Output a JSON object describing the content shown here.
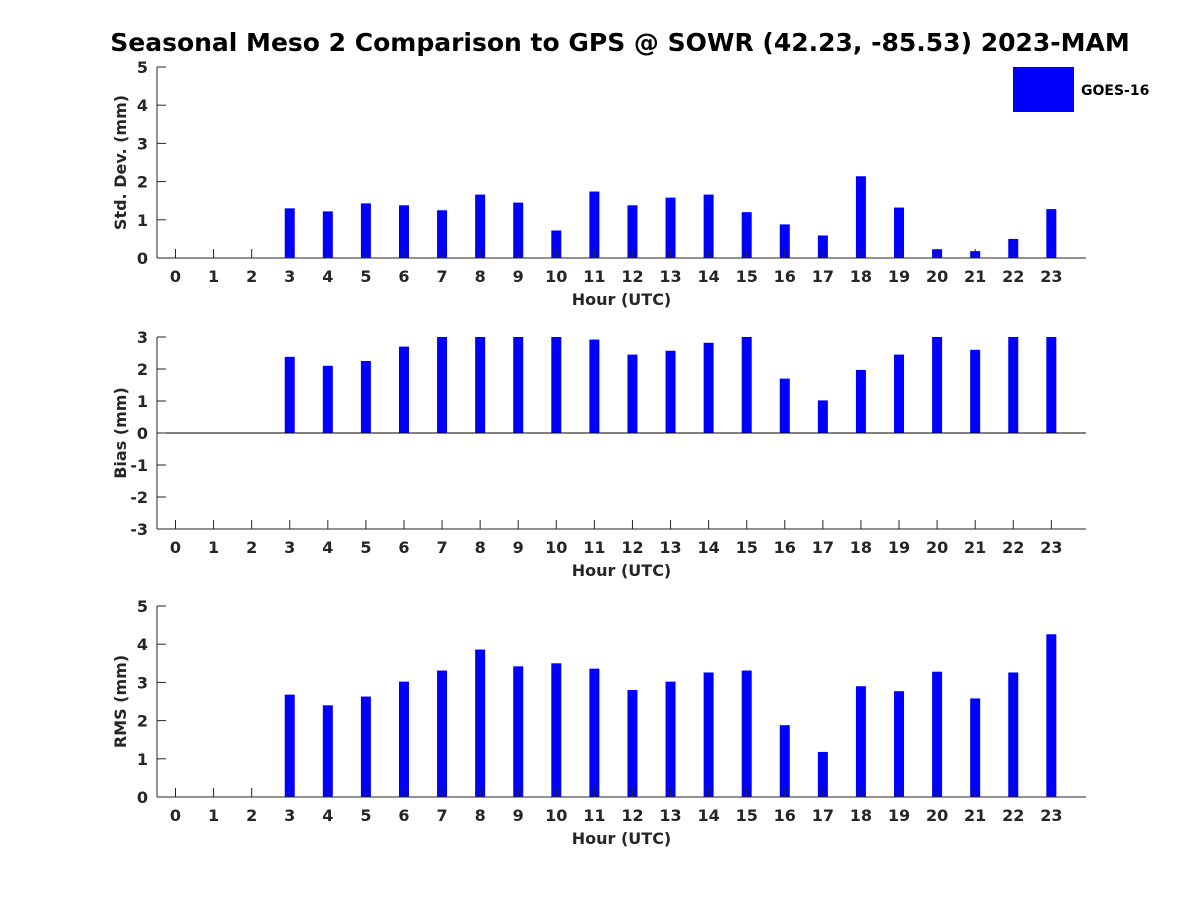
{
  "title": "Seasonal Meso 2 Comparison to GPS @ SOWR (42.23, -85.53) 2023-MAM",
  "colors": {
    "bar": "#0000ff",
    "axis": "#262626"
  },
  "legend": {
    "label": "GOES-16",
    "position": "top-right"
  },
  "chart_data": [
    {
      "type": "bar",
      "name": "std-dev",
      "categories": [
        "0",
        "1",
        "2",
        "3",
        "4",
        "5",
        "6",
        "7",
        "8",
        "9",
        "10",
        "11",
        "12",
        "13",
        "14",
        "15",
        "16",
        "17",
        "18",
        "19",
        "20",
        "21",
        "22",
        "23"
      ],
      "values": [
        null,
        null,
        null,
        1.3,
        1.22,
        1.43,
        1.38,
        1.25,
        1.66,
        1.45,
        0.72,
        1.74,
        1.38,
        1.58,
        1.66,
        1.2,
        0.88,
        0.59,
        2.14,
        1.32,
        0.23,
        0.18,
        0.5,
        1.28
      ],
      "xlabel": "Hour (UTC)",
      "ylabel": "Std. Dev. (mm)",
      "ylim": [
        0,
        5
      ],
      "yticks": [
        "0",
        "1",
        "2",
        "3",
        "4",
        "5"
      ],
      "grid": false
    },
    {
      "type": "bar",
      "name": "bias",
      "categories": [
        "0",
        "1",
        "2",
        "3",
        "4",
        "5",
        "6",
        "7",
        "8",
        "9",
        "10",
        "11",
        "12",
        "13",
        "14",
        "15",
        "16",
        "17",
        "18",
        "19",
        "20",
        "21",
        "22",
        "23"
      ],
      "values": [
        null,
        null,
        null,
        2.38,
        2.1,
        2.25,
        2.7,
        3.0,
        3.0,
        3.0,
        3.0,
        2.92,
        2.45,
        2.57,
        2.82,
        3.0,
        1.7,
        1.02,
        1.97,
        2.45,
        3.0,
        2.6,
        3.0,
        3.0
      ],
      "xlabel": "Hour (UTC)",
      "ylabel": "Bias (mm)",
      "ylim": [
        -3,
        3
      ],
      "yticks": [
        "-3",
        "-2",
        "-1",
        "0",
        "1",
        "2",
        "3"
      ],
      "grid": false
    },
    {
      "type": "bar",
      "name": "rms",
      "categories": [
        "0",
        "1",
        "2",
        "3",
        "4",
        "5",
        "6",
        "7",
        "8",
        "9",
        "10",
        "11",
        "12",
        "13",
        "14",
        "15",
        "16",
        "17",
        "18",
        "19",
        "20",
        "21",
        "22",
        "23"
      ],
      "values": [
        null,
        null,
        null,
        2.68,
        2.4,
        2.63,
        3.02,
        3.31,
        3.86,
        3.42,
        3.5,
        3.36,
        2.8,
        3.02,
        3.26,
        3.31,
        1.88,
        1.18,
        2.9,
        2.77,
        3.28,
        2.58,
        3.26,
        4.26
      ],
      "xlabel": "Hour (UTC)",
      "ylabel": "RMS (mm)",
      "ylim": [
        0,
        5
      ],
      "yticks": [
        "0",
        "1",
        "2",
        "3",
        "4",
        "5"
      ],
      "grid": false
    }
  ]
}
